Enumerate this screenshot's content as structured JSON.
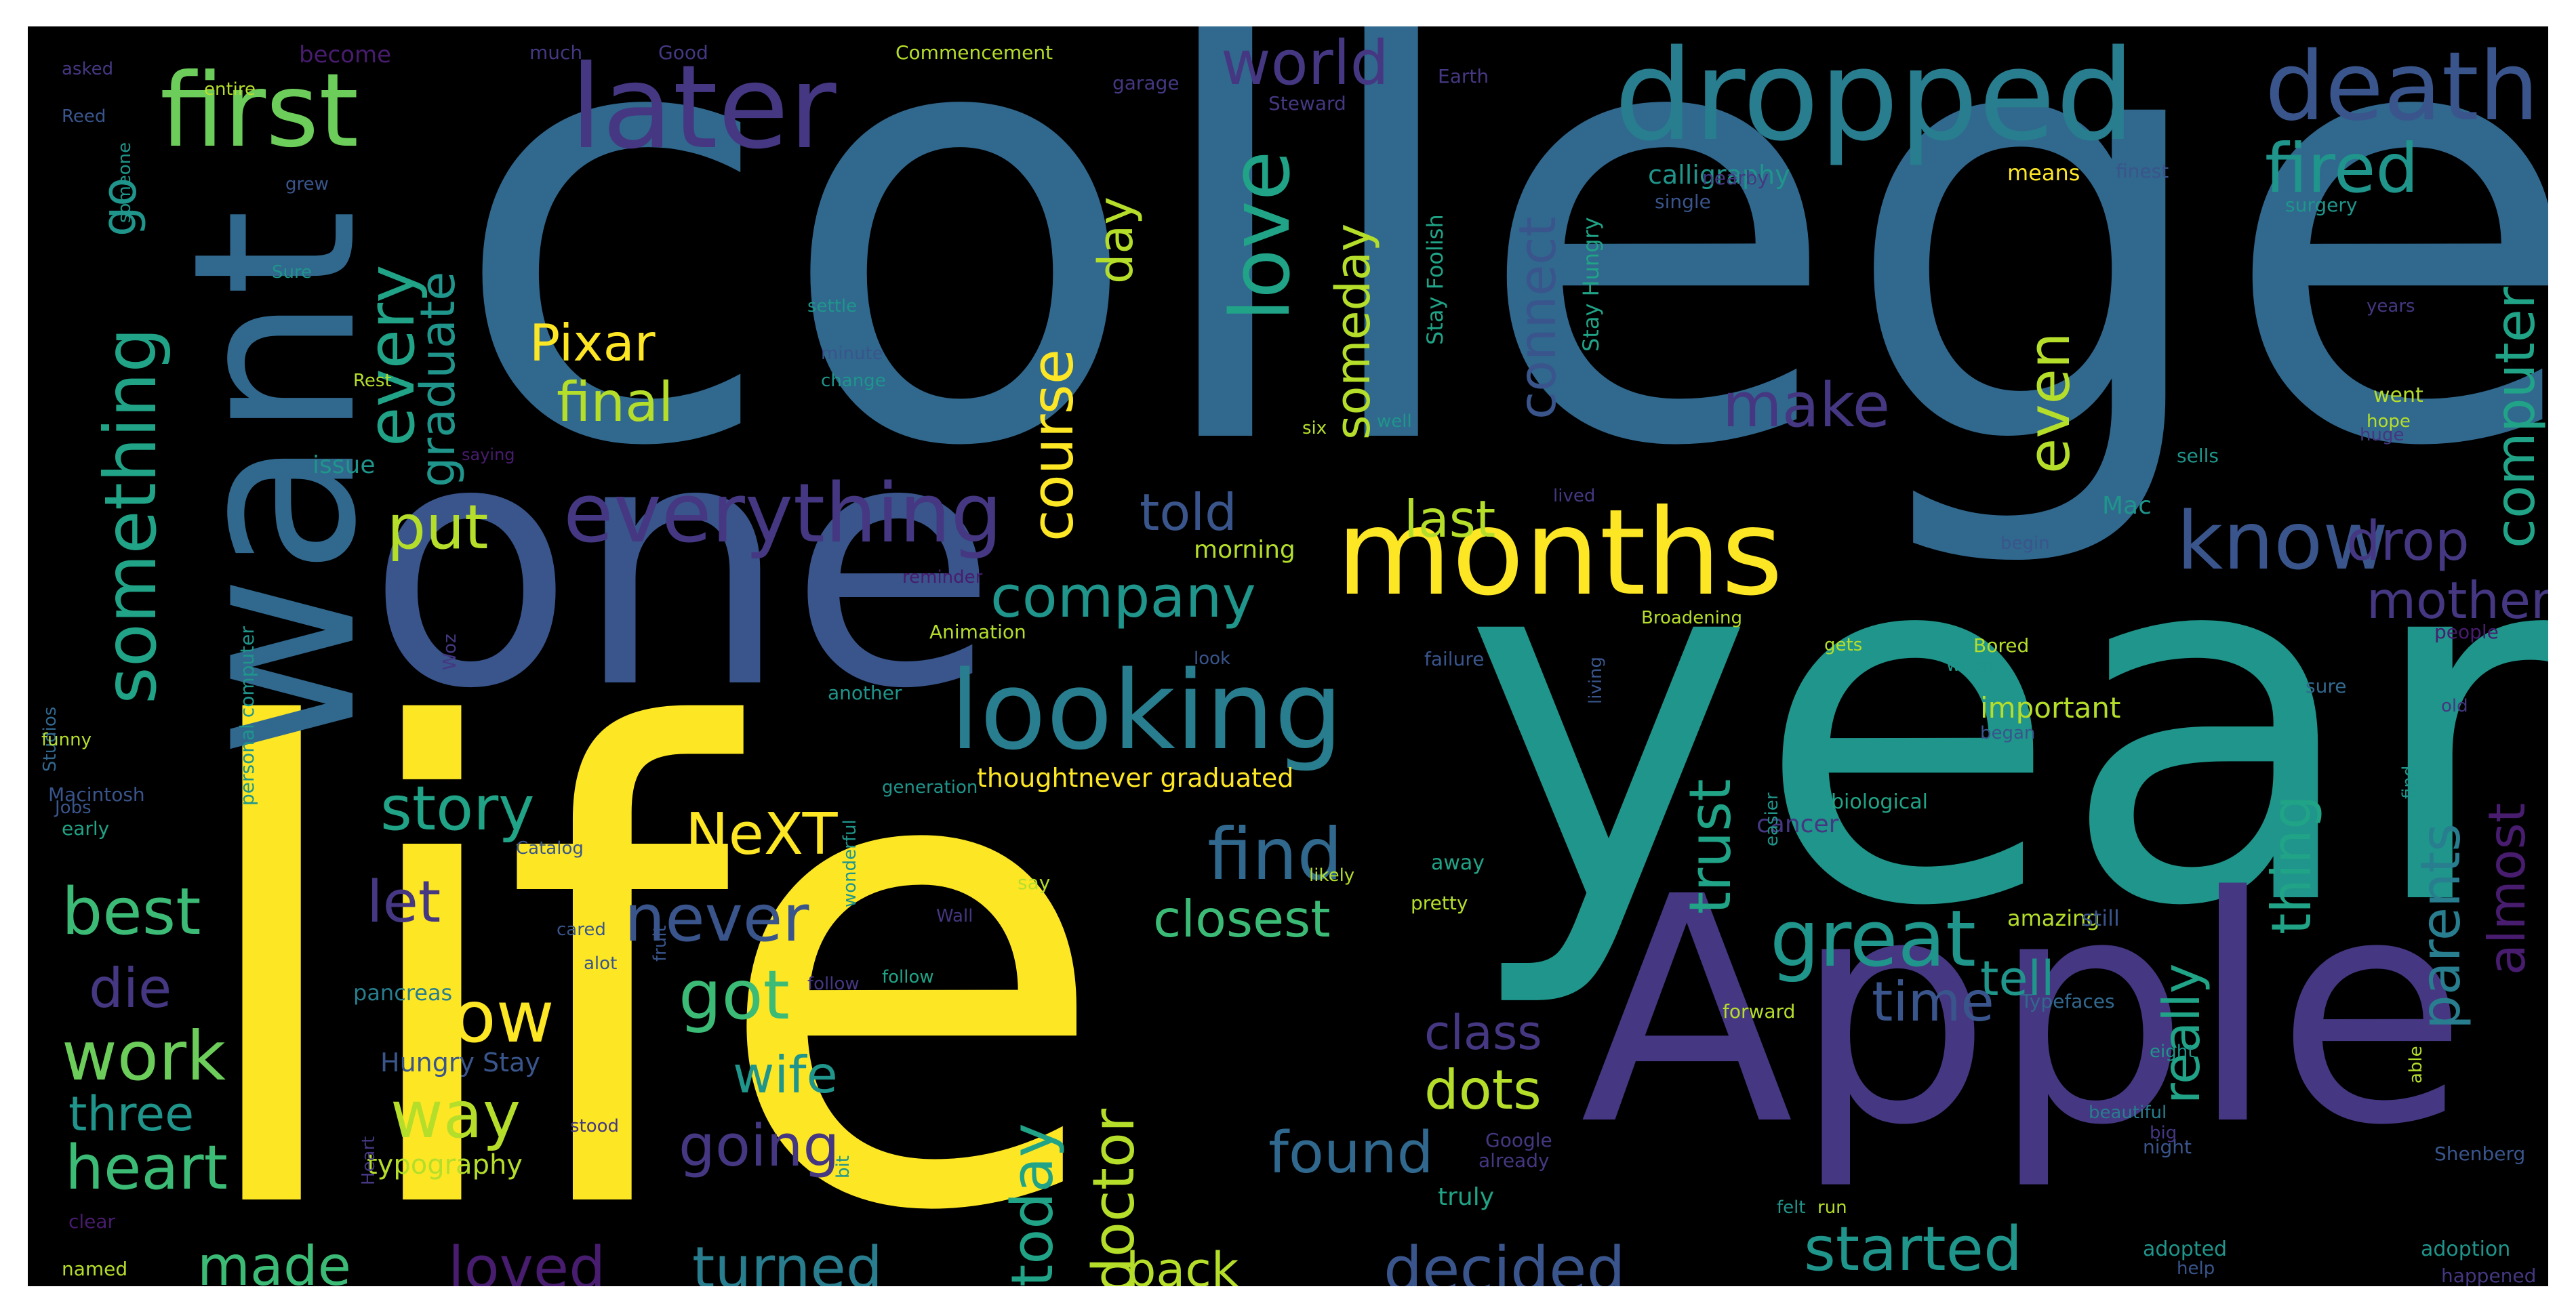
{
  "palette": {
    "dk": "#481c6e",
    "pu": "#453781",
    "bl": "#39558c",
    "mb": "#31688e",
    "tb": "#287d8e",
    "te": "#1f958b",
    "gt": "#20a386",
    "gr": "#3bbb75",
    "lg": "#6ccd5a",
    "yg": "#b5de2b",
    "ye": "#fde725"
  },
  "words": [
    {
      "text": "college",
      "color": "mb"
    },
    {
      "text": "life",
      "color": "ye"
    },
    {
      "text": "year",
      "color": "te"
    },
    {
      "text": "one",
      "color": "bl"
    },
    {
      "text": "Apple",
      "color": "pu"
    },
    {
      "text": "want",
      "color": "mb"
    },
    {
      "text": "months",
      "color": "ye"
    },
    {
      "text": "dropped",
      "color": "tb"
    },
    {
      "text": "first",
      "color": "lg"
    },
    {
      "text": "later",
      "color": "pu"
    },
    {
      "text": "death",
      "color": "bl"
    },
    {
      "text": "looking",
      "color": "tb"
    },
    {
      "text": "everything",
      "color": "pu"
    },
    {
      "text": "know",
      "color": "bl"
    },
    {
      "text": "love",
      "color": "gt"
    },
    {
      "text": "fired",
      "color": "te"
    },
    {
      "text": "world",
      "color": "pu"
    },
    {
      "text": "go",
      "color": "te"
    },
    {
      "text": "something",
      "color": "gt"
    },
    {
      "text": "every",
      "color": "gt"
    },
    {
      "text": "graduate",
      "color": "te"
    },
    {
      "text": "Pixar",
      "color": "ye"
    },
    {
      "text": "final",
      "color": "yg"
    },
    {
      "text": "connect",
      "color": "bl"
    },
    {
      "text": "course",
      "color": "ye"
    },
    {
      "text": "day",
      "color": "yg"
    },
    {
      "text": "someday",
      "color": "yg"
    },
    {
      "text": "make",
      "color": "pu"
    },
    {
      "text": "even",
      "color": "yg"
    },
    {
      "text": "computer",
      "color": "gt"
    },
    {
      "text": "drop",
      "color": "pu"
    },
    {
      "text": "company",
      "color": "te"
    },
    {
      "text": "put",
      "color": "yg"
    },
    {
      "text": "told",
      "color": "bl"
    },
    {
      "text": "last",
      "color": "yg"
    },
    {
      "text": "mother",
      "color": "pu"
    },
    {
      "text": "story",
      "color": "gt"
    },
    {
      "text": "NeXT",
      "color": "ye"
    },
    {
      "text": "find",
      "color": "mb"
    },
    {
      "text": "trust",
      "color": "gt"
    },
    {
      "text": "thing",
      "color": "gt"
    },
    {
      "text": "parents",
      "color": "tb"
    },
    {
      "text": "almost",
      "color": "dk"
    },
    {
      "text": "best",
      "color": "gr"
    },
    {
      "text": "let",
      "color": "pu"
    },
    {
      "text": "never",
      "color": "bl"
    },
    {
      "text": "closest",
      "color": "gr"
    },
    {
      "text": "great",
      "color": "te"
    },
    {
      "text": "really",
      "color": "gt"
    },
    {
      "text": "die",
      "color": "pu"
    },
    {
      "text": "now",
      "color": "ye"
    },
    {
      "text": "got",
      "color": "gr"
    },
    {
      "text": "time",
      "color": "bl"
    },
    {
      "text": "tell",
      "color": "te"
    },
    {
      "text": "work",
      "color": "lg"
    },
    {
      "text": "way",
      "color": "yg"
    },
    {
      "text": "wife",
      "color": "te"
    },
    {
      "text": "class",
      "color": "pu"
    },
    {
      "text": "today",
      "color": "gt"
    },
    {
      "text": "doctor",
      "color": "yg"
    },
    {
      "text": "dots",
      "color": "yg"
    },
    {
      "text": "three",
      "color": "te"
    },
    {
      "text": "heart",
      "color": "gr"
    },
    {
      "text": "going",
      "color": "pu"
    },
    {
      "text": "found",
      "color": "mb"
    },
    {
      "text": "made",
      "color": "gr"
    },
    {
      "text": "loved",
      "color": "dk"
    },
    {
      "text": "turned",
      "color": "tb"
    },
    {
      "text": "back",
      "color": "yg"
    },
    {
      "text": "decided",
      "color": "bl"
    },
    {
      "text": "started",
      "color": "te"
    },
    {
      "text": "Stay Foolish",
      "color": "gt"
    },
    {
      "text": "Stay Hungry",
      "color": "gt"
    },
    {
      "text": "calligraphy",
      "color": "te"
    },
    {
      "text": "means",
      "color": "ye"
    },
    {
      "text": "thoughtnever graduated",
      "color": "ye"
    },
    {
      "text": "important",
      "color": "yg"
    },
    {
      "text": "Hungry Stay",
      "color": "bl"
    },
    {
      "text": "typography",
      "color": "yg"
    },
    {
      "text": "pancreas",
      "color": "tb"
    },
    {
      "text": "cancer",
      "color": "pu"
    },
    {
      "text": "Mac",
      "color": "te"
    },
    {
      "text": "morning",
      "color": "yg"
    },
    {
      "text": "issue",
      "color": "te"
    },
    {
      "text": "personal computer",
      "color": "te"
    },
    {
      "text": "Commencement",
      "color": "yg"
    },
    {
      "text": "become",
      "color": "dk"
    },
    {
      "text": "much",
      "color": "pu"
    },
    {
      "text": "Steward",
      "color": "pu"
    },
    {
      "text": "Good",
      "color": "pu"
    },
    {
      "text": "garage",
      "color": "pu"
    },
    {
      "text": "Earth",
      "color": "pu"
    },
    {
      "text": "single",
      "color": "bl"
    },
    {
      "text": "nearby",
      "color": "pu"
    },
    {
      "text": "finest",
      "color": "bl"
    },
    {
      "text": "surgery",
      "color": "te"
    },
    {
      "text": "people",
      "color": "dk"
    },
    {
      "text": "sure",
      "color": "mb"
    },
    {
      "text": "biological",
      "color": "gt"
    },
    {
      "text": "adopted",
      "color": "te"
    },
    {
      "text": "adoption",
      "color": "te"
    },
    {
      "text": "happened",
      "color": "pu"
    },
    {
      "text": "Shenberg",
      "color": "bl"
    },
    {
      "text": "amazing",
      "color": "yg"
    },
    {
      "text": "still",
      "color": "bl"
    },
    {
      "text": "Typefaces",
      "color": "mb"
    },
    {
      "text": "forward",
      "color": "yg"
    },
    {
      "text": "night",
      "color": "bl"
    },
    {
      "text": "Google",
      "color": "pu"
    },
    {
      "text": "already",
      "color": "pu"
    },
    {
      "text": "truly",
      "color": "gt"
    },
    {
      "text": "named",
      "color": "yg"
    },
    {
      "text": "clear",
      "color": "dk"
    },
    {
      "text": "Macintosh",
      "color": "bl"
    },
    {
      "text": "early",
      "color": "gt"
    },
    {
      "text": "Studios",
      "color": "mb"
    },
    {
      "text": "Animation",
      "color": "yg"
    },
    {
      "text": "failure",
      "color": "bl"
    },
    {
      "text": "another",
      "color": "te"
    },
    {
      "text": "Catalog",
      "color": "bl"
    },
    {
      "text": "away",
      "color": "gt"
    },
    {
      "text": "pretty",
      "color": "yg"
    },
    {
      "text": "minute",
      "color": "bl"
    },
    {
      "text": "change",
      "color": "te"
    },
    {
      "text": "settle",
      "color": "te"
    },
    {
      "text": "lived",
      "color": "pu"
    },
    {
      "text": "living",
      "color": "bl"
    },
    {
      "text": "went",
      "color": "yg"
    },
    {
      "text": "huge",
      "color": "pu"
    },
    {
      "text": "begin",
      "color": "bl"
    },
    {
      "text": "sells",
      "color": "te"
    },
    {
      "text": "old",
      "color": "pu"
    },
    {
      "text": "Bored",
      "color": "yg"
    },
    {
      "text": "eight",
      "color": "te"
    },
    {
      "text": "follow",
      "color": "pu"
    },
    {
      "text": "say",
      "color": "yg"
    },
    {
      "text": "wonderful",
      "color": "te"
    },
    {
      "text": "Woz",
      "color": "pu"
    },
    {
      "text": "look",
      "color": "bl"
    },
    {
      "text": "hope",
      "color": "yg"
    },
    {
      "text": "funny",
      "color": "yg"
    },
    {
      "text": "Jobs",
      "color": "bl"
    },
    {
      "text": "grew",
      "color": "bl"
    },
    {
      "text": "saying",
      "color": "dk"
    },
    {
      "text": "help",
      "color": "bl"
    },
    {
      "text": "run",
      "color": "yg"
    },
    {
      "text": "felt",
      "color": "te"
    },
    {
      "text": "big",
      "color": "pu"
    },
    {
      "text": "Sure",
      "color": "te"
    },
    {
      "text": "six",
      "color": "yg"
    },
    {
      "text": "well",
      "color": "te"
    },
    {
      "text": "Rest",
      "color": "yg"
    },
    {
      "text": "worst",
      "color": "te"
    },
    {
      "text": "beautiful",
      "color": "tb"
    },
    {
      "text": "able",
      "color": "yg"
    },
    {
      "text": "find",
      "color": "te"
    },
    {
      "text": "began",
      "color": "bl"
    },
    {
      "text": "years",
      "color": "pu"
    },
    {
      "text": "asked",
      "color": "pu"
    },
    {
      "text": "Reed",
      "color": "bl"
    },
    {
      "text": "entire",
      "color": "yg"
    },
    {
      "text": "someone",
      "color": "te"
    },
    {
      "text": "generation",
      "color": "te"
    },
    {
      "text": "Broadening",
      "color": "yg"
    },
    {
      "text": "fruit",
      "color": "bl"
    },
    {
      "text": "Heart",
      "color": "pu"
    },
    {
      "text": "follow",
      "color": "gt"
    },
    {
      "text": "Wall",
      "color": "pu"
    },
    {
      "text": "bit",
      "color": "te"
    },
    {
      "text": "alot",
      "color": "bl"
    },
    {
      "text": "cared",
      "color": "bl"
    },
    {
      "text": "easier",
      "color": "te"
    },
    {
      "text": "stood",
      "color": "pu"
    },
    {
      "text": "reminder",
      "color": "dk"
    },
    {
      "text": "likely",
      "color": "yg"
    },
    {
      "text": "gets",
      "color": "yg"
    }
  ]
}
